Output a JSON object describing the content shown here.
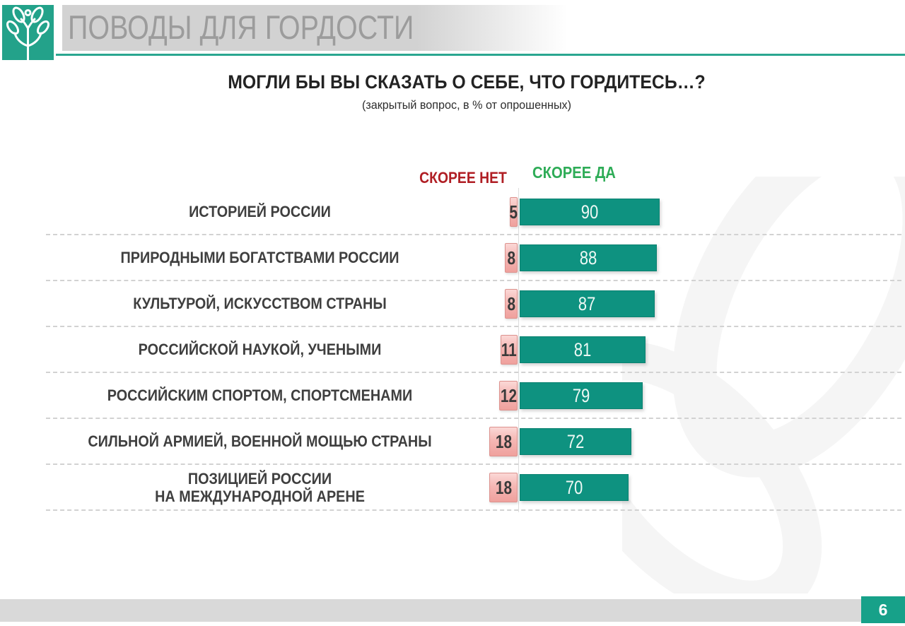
{
  "header": {
    "title": "ПОВОДЫ ДЛЯ ГОРДОСТИ"
  },
  "question": {
    "title": "МОГЛИ БЫ ВЫ СКАЗАТЬ О СЕБЕ, ЧТО ГОРДИТЕСЬ…?",
    "subtitle": "(закрытый вопрос, в % от опрошенных)"
  },
  "legend": {
    "no": "СКОРЕЕ НЕТ",
    "yes": "СКОРЕЕ ДА"
  },
  "footer": {
    "page_number": "6"
  },
  "colors": {
    "accent_teal": "#23a28a",
    "bar_yes": "#0e9280",
    "bar_no_fill": "#f5b7b4",
    "bar_no_border": "#dd928e",
    "legend_no_text": "#b01e24",
    "legend_yes_text": "#2eac57",
    "category_text": "#3f3f3f",
    "watermark": "#f5f5f5"
  },
  "chart_data": {
    "type": "bar",
    "orientation": "horizontal-diverging",
    "unit": "% от опрошенных",
    "legend_position": "top-center",
    "grid": "dashed-row-separators",
    "categories": [
      [
        "ИСТОРИЕЙ РОССИИ"
      ],
      [
        "ПРИРОДНЫМИ БОГАТСТВАМИ РОССИИ"
      ],
      [
        "КУЛЬТУРОЙ, ИСКУССТВОМ СТРАНЫ"
      ],
      [
        "РОССИЙСКОЙ НАУКОЙ, УЧЕНЫМИ"
      ],
      [
        "РОССИЙСКИМ СПОРТОМ, СПОРТСМЕНАМИ"
      ],
      [
        "СИЛЬНОЙ АРМИЕЙ, ВОЕННОЙ МОЩЬЮ СТРАНЫ"
      ],
      [
        "ПОЗИЦИЕЙ РОССИИ",
        "НА МЕЖДУНАРОДНОЙ АРЕНЕ"
      ]
    ],
    "series": [
      {
        "name": "СКОРЕЕ НЕТ",
        "values": [
          5,
          8,
          8,
          11,
          12,
          18,
          18
        ]
      },
      {
        "name": "СКОРЕЕ ДА",
        "values": [
          90,
          88,
          87,
          81,
          79,
          72,
          70
        ]
      }
    ]
  }
}
